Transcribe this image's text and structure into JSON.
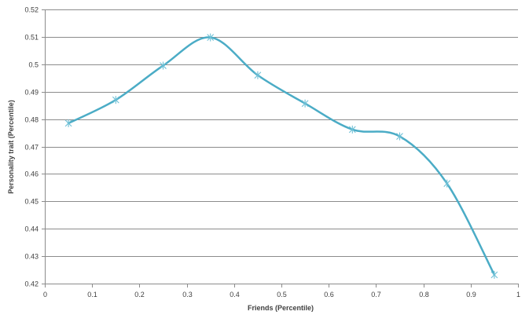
{
  "chart_data": {
    "type": "line",
    "title": "",
    "xlabel": "Friends (Percentile)",
    "ylabel": "Personality trait (Percentile)",
    "xlim": [
      0,
      1
    ],
    "ylim": [
      0.42,
      0.52
    ],
    "x_ticks": [
      0,
      0.1,
      0.2,
      0.3,
      0.4,
      0.5,
      0.6,
      0.7,
      0.8,
      0.9,
      1
    ],
    "x_tick_labels": [
      "0",
      "0.1",
      "0.2",
      "0.3",
      "0.4",
      "0.5",
      "0.6",
      "0.7",
      "0.8",
      "0.9",
      "1"
    ],
    "y_ticks": [
      0.42,
      0.43,
      0.44,
      0.45,
      0.46,
      0.47,
      0.48,
      0.49,
      0.5,
      0.51,
      0.52
    ],
    "y_tick_labels": [
      "0.42",
      "0.43",
      "0.44",
      "0.45",
      "0.46",
      "0.47",
      "0.48",
      "0.49",
      "0.5",
      "0.51",
      "0.52"
    ],
    "grid": true,
    "legend": "none",
    "series": [
      {
        "x": [
          0.05,
          0.15,
          0.25,
          0.35,
          0.45,
          0.55,
          0.65,
          0.75,
          0.85,
          0.95
        ],
        "y": [
          0.4785,
          0.487,
          0.4995,
          0.5098,
          0.496,
          0.4857,
          0.4762,
          0.4737,
          0.4565,
          0.4232
        ],
        "color": "#4bacc6",
        "marker": "star",
        "smooth": true
      }
    ]
  }
}
